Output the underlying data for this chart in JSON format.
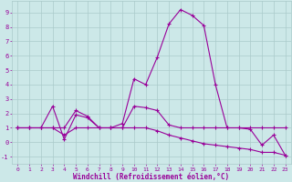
{
  "xlabel": "Windchill (Refroidissement éolien,°C)",
  "background_color": "#cce8e8",
  "grid_color": "#aacaca",
  "line_color": "#990099",
  "x_hours": [
    0,
    1,
    2,
    3,
    4,
    5,
    6,
    7,
    8,
    9,
    10,
    11,
    12,
    13,
    14,
    15,
    16,
    17,
    18,
    19,
    20,
    21,
    22,
    23
  ],
  "series1": [
    1.0,
    1.0,
    1.0,
    2.5,
    0.2,
    1.9,
    1.7,
    1.0,
    1.0,
    1.3,
    4.4,
    4.0,
    5.9,
    8.2,
    9.2,
    8.8,
    8.1,
    4.0,
    1.0,
    1.0,
    0.9,
    -0.2,
    0.5,
    -0.9
  ],
  "series2": [
    1.0,
    1.0,
    1.0,
    1.0,
    1.0,
    2.2,
    1.8,
    1.0,
    1.0,
    1.0,
    2.5,
    2.4,
    2.2,
    1.2,
    1.0,
    1.0,
    1.0,
    1.0,
    1.0,
    1.0,
    1.0,
    1.0,
    1.0,
    1.0
  ],
  "series3": [
    1.0,
    1.0,
    1.0,
    1.0,
    0.5,
    1.0,
    1.0,
    1.0,
    1.0,
    1.0,
    1.0,
    1.0,
    0.8,
    0.5,
    0.3,
    0.1,
    -0.1,
    -0.2,
    -0.3,
    -0.4,
    -0.5,
    -0.7,
    -0.7,
    -0.9
  ],
  "ylim": [
    -1.5,
    9.8
  ],
  "yticks": [
    -1,
    0,
    1,
    2,
    3,
    4,
    5,
    6,
    7,
    8,
    9
  ],
  "xlim": [
    -0.5,
    23.5
  ],
  "figsize": [
    3.2,
    2.0
  ],
  "dpi": 100
}
